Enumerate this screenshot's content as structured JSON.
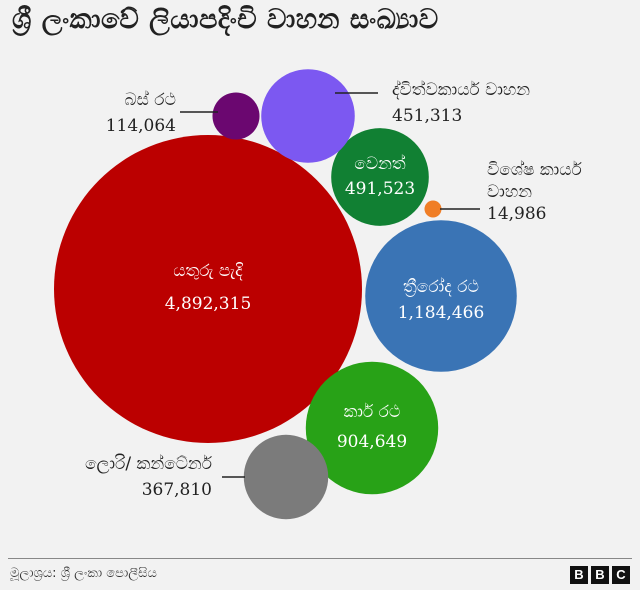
{
  "title": "ශ්‍රී ලංකාවේ ලියාපදිංචි වාහන සංඛ්‍යාව",
  "source": "මූලාශ්‍රය: ශ්‍රී ලංකා පොලීසිය",
  "logo": [
    "B",
    "B",
    "C"
  ],
  "chart_data": {
    "type": "bubble",
    "series": [
      {
        "name": "යතුරු පැදි",
        "value": 4892315,
        "label": "4,892,315",
        "color": "#bb0000"
      },
      {
        "name": "ත්‍රීරෝද රථ",
        "value": 1184466,
        "label": "1,184,466",
        "color": "#3a74b5"
      },
      {
        "name": "කාර් රථ",
        "value": 904649,
        "label": "904,649",
        "color": "#28a217"
      },
      {
        "name": "වෙනත්",
        "value": 491523,
        "label": "491,523",
        "color": "#118033"
      },
      {
        "name": "ද්විත්වකාර්ය වාහන",
        "value": 451313,
        "label": "451,313",
        "color": "#7c58f1"
      },
      {
        "name": "ලොරි/ කන්ටේනර්",
        "value": 367810,
        "label": "367,810",
        "color": "#7b7b7b"
      },
      {
        "name": "බස් රථ",
        "value": 114064,
        "label": "114,064",
        "color": "#6b0770"
      },
      {
        "name": "විශේෂ කාර්ය වාහන",
        "value": 14986,
        "label": "14,986",
        "color": "#f07e26"
      }
    ]
  }
}
